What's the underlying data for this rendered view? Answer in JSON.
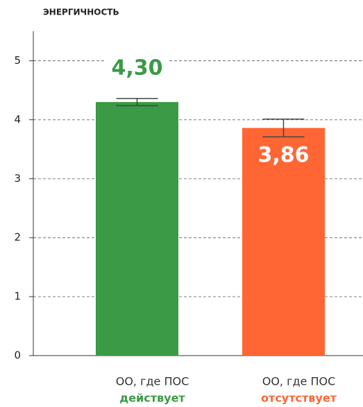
{
  "chart_data": {
    "type": "bar",
    "title": "ЭНЕРГИЧНОСТЬ",
    "categories": [
      [
        "ОО, где ПОС",
        "действует"
      ],
      [
        "ОО, где ПОС",
        "отсутствует"
      ]
    ],
    "values": [
      4.3,
      3.86
    ],
    "value_labels": [
      "4,30",
      "3,86"
    ],
    "errors": [
      0.06,
      0.15
    ],
    "colors": [
      "#3a9a45",
      "#ff6633"
    ],
    "label_position": [
      "above",
      "inside"
    ],
    "ylim": [
      0,
      5.5
    ],
    "yticks": [
      0,
      1,
      2,
      3,
      4,
      5
    ],
    "grid": true
  }
}
